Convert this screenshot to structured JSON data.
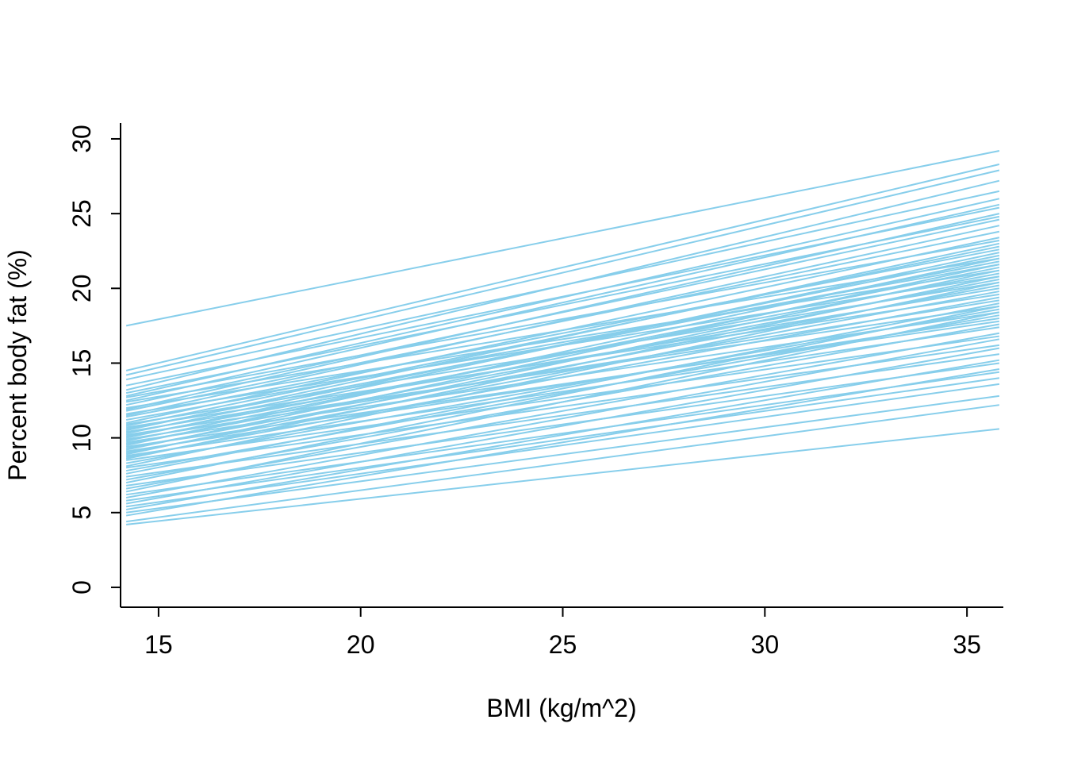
{
  "chart_data": {
    "type": "line",
    "title": "",
    "xlabel": "BMI (kg/m^2)",
    "ylabel": "Percent body fat (%)",
    "xlim": [
      14.06,
      35.9
    ],
    "ylim": [
      -1.33,
      31.06
    ],
    "x_ticks": [
      15,
      20,
      25,
      30,
      35
    ],
    "y_ticks": [
      0,
      5,
      10,
      15,
      20,
      25,
      30
    ],
    "grid": false,
    "legend": "none",
    "line_color": "#87CEEB",
    "axis_color": "#000000",
    "background_color": "#FFFFFF",
    "description": "Spaghetti plot of many fitted regression lines of percent body fat versus BMI; each line gives predicted percent body fat at BMI endpoints.",
    "line_x_range": [
      14.2,
      35.8
    ],
    "lines": [
      [
        17.5,
        29.2
      ],
      [
        14.5,
        28.3
      ],
      [
        14.2,
        27.9
      ],
      [
        13.9,
        26.5
      ],
      [
        13.5,
        25.4
      ],
      [
        13.2,
        27.2
      ],
      [
        13.0,
        24.8
      ],
      [
        12.8,
        26.0
      ],
      [
        12.7,
        23.2
      ],
      [
        12.5,
        25.6
      ],
      [
        12.4,
        22.0
      ],
      [
        12.2,
        24.6
      ],
      [
        12.0,
        21.2
      ],
      [
        11.9,
        25.0
      ],
      [
        11.8,
        23.8
      ],
      [
        11.6,
        20.8
      ],
      [
        11.5,
        24.2
      ],
      [
        11.4,
        22.6
      ],
      [
        11.2,
        21.6
      ],
      [
        11.0,
        23.4
      ],
      [
        10.9,
        20.4
      ],
      [
        10.8,
        22.8
      ],
      [
        10.7,
        19.6
      ],
      [
        10.6,
        21.8
      ],
      [
        10.5,
        23.0
      ],
      [
        10.4,
        20.0
      ],
      [
        10.3,
        22.2
      ],
      [
        10.2,
        18.8
      ],
      [
        10.1,
        21.0
      ],
      [
        10.0,
        22.4
      ],
      [
        9.9,
        19.2
      ],
      [
        9.8,
        21.4
      ],
      [
        9.7,
        18.4
      ],
      [
        9.6,
        20.6
      ],
      [
        9.5,
        22.0
      ],
      [
        9.4,
        17.8
      ],
      [
        9.3,
        20.2
      ],
      [
        9.2,
        21.6
      ],
      [
        9.1,
        18.0
      ],
      [
        9.0,
        19.8
      ],
      [
        8.9,
        21.2
      ],
      [
        8.8,
        17.4
      ],
      [
        8.7,
        19.4
      ],
      [
        8.6,
        20.8
      ],
      [
        8.5,
        16.8
      ],
      [
        8.3,
        18.6
      ],
      [
        8.1,
        20.4
      ],
      [
        8.0,
        16.2
      ],
      [
        7.8,
        18.2
      ],
      [
        7.6,
        19.0
      ],
      [
        7.4,
        15.6
      ],
      [
        7.2,
        17.6
      ],
      [
        7.0,
        18.8
      ],
      [
        6.8,
        15.0
      ],
      [
        6.6,
        17.0
      ],
      [
        6.4,
        18.4
      ],
      [
        6.2,
        14.4
      ],
      [
        6.0,
        16.6
      ],
      [
        5.8,
        14.0
      ],
      [
        5.6,
        16.0
      ],
      [
        5.4,
        13.6
      ],
      [
        5.2,
        15.2
      ],
      [
        5.0,
        12.8
      ],
      [
        4.8,
        14.6
      ],
      [
        4.4,
        12.2
      ],
      [
        4.2,
        10.6
      ]
    ]
  }
}
